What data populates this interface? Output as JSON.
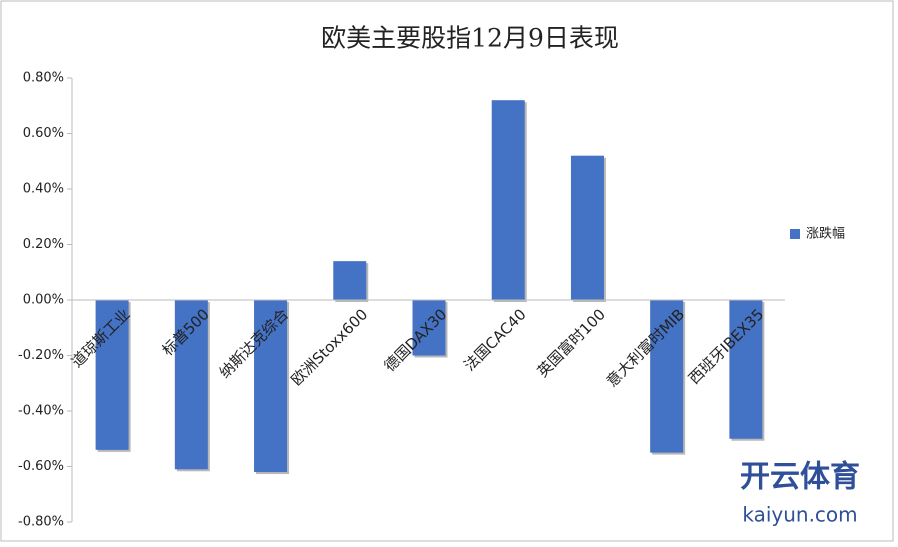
{
  "chart_data": {
    "type": "bar",
    "title": "欧美主要股指12月9日表现",
    "categories": [
      "道琼斯工业",
      "标普500",
      "纳斯达克综合",
      "欧洲Stoxx600",
      "德国DAX30",
      "法国CAC40",
      "英国富时100",
      "意大利富时MIB",
      "西班牙IBEX35"
    ],
    "series": [
      {
        "name": "涨跌幅",
        "color": "#4472c4",
        "values": [
          -0.54,
          -0.61,
          -0.62,
          0.14,
          -0.2,
          0.72,
          0.52,
          -0.55,
          -0.5
        ]
      }
    ],
    "ylim": [
      -0.8,
      0.8
    ],
    "yticks": [
      {
        "value": -0.8,
        "label": "-0.80%"
      },
      {
        "value": -0.6,
        "label": "-0.60%"
      },
      {
        "value": -0.4,
        "label": "-0.40%"
      },
      {
        "value": -0.2,
        "label": "-0.20%"
      },
      {
        "value": 0,
        "label": "0.00%"
      },
      {
        "value": 0.2,
        "label": "0.20%"
      },
      {
        "value": 0.4,
        "label": "0.40%"
      },
      {
        "value": 0.6,
        "label": "0.60%"
      },
      {
        "value": 0.8,
        "label": "0.80%"
      }
    ],
    "grid": false,
    "legend": "right"
  },
  "watermark": {
    "brand": "开云体育",
    "site": "kaiyun.com"
  }
}
